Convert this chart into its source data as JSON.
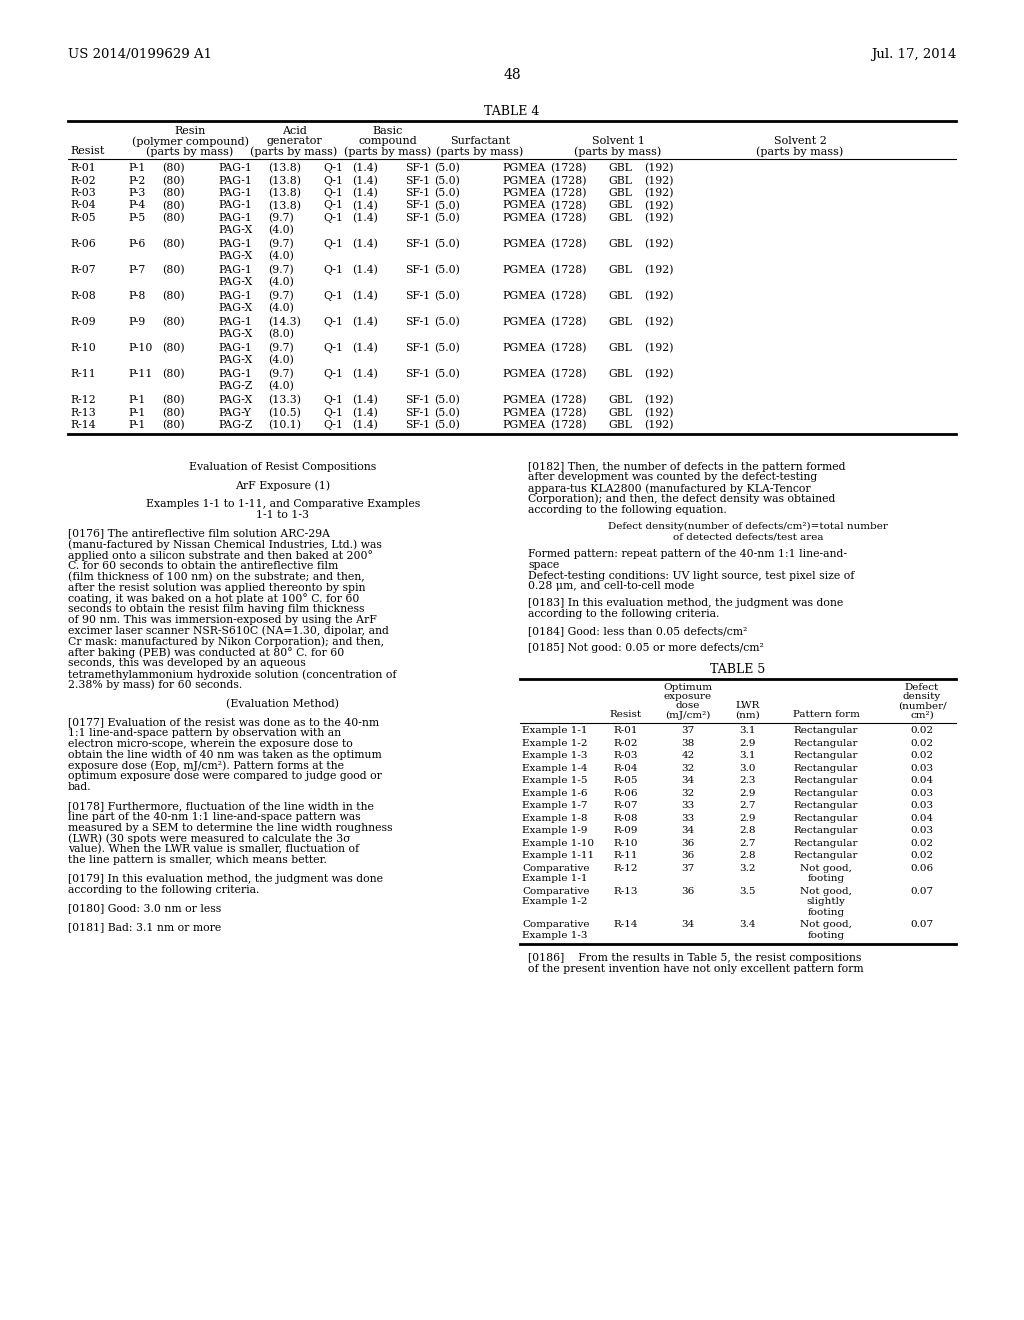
{
  "page_header_left": "US 2014/0199629 A1",
  "page_header_right": "Jul. 17, 2014",
  "page_number": "48",
  "table4_title": "TABLE 4",
  "table5_title": "TABLE 5",
  "table4_data": [
    [
      "R-01",
      "P-1",
      "(80)",
      "PAG-1",
      [
        "13.8"
      ],
      "Q-1",
      "(1.4)",
      "SF-1",
      "(5.0)",
      "PGMEA",
      "(1728)",
      "GBL",
      "(192)"
    ],
    [
      "R-02",
      "P-2",
      "(80)",
      "PAG-1",
      [
        "13.8"
      ],
      "Q-1",
      "(1.4)",
      "SF-1",
      "(5.0)",
      "PGMEA",
      "(1728)",
      "GBL",
      "(192)"
    ],
    [
      "R-03",
      "P-3",
      "(80)",
      "PAG-1",
      [
        "13.8"
      ],
      "Q-1",
      "(1.4)",
      "SF-1",
      "(5.0)",
      "PGMEA",
      "(1728)",
      "GBL",
      "(192)"
    ],
    [
      "R-04",
      "P-4",
      "(80)",
      "PAG-1",
      [
        "13.8"
      ],
      "Q-1",
      "(1.4)",
      "SF-1",
      "(5.0)",
      "PGMEA",
      "(1728)",
      "GBL",
      "(192)"
    ],
    [
      "R-05",
      "P-5",
      "(80)",
      "PAG-1\nPAG-X",
      [
        "9.7",
        "4.0"
      ],
      "Q-1",
      "(1.4)",
      "SF-1",
      "(5.0)",
      "PGMEA",
      "(1728)",
      "GBL",
      "(192)"
    ],
    [
      "R-06",
      "P-6",
      "(80)",
      "PAG-1\nPAG-X",
      [
        "9.7",
        "4.0"
      ],
      "Q-1",
      "(1.4)",
      "SF-1",
      "(5.0)",
      "PGMEA",
      "(1728)",
      "GBL",
      "(192)"
    ],
    [
      "R-07",
      "P-7",
      "(80)",
      "PAG-1\nPAG-X",
      [
        "9.7",
        "4.0"
      ],
      "Q-1",
      "(1.4)",
      "SF-1",
      "(5.0)",
      "PGMEA",
      "(1728)",
      "GBL",
      "(192)"
    ],
    [
      "R-08",
      "P-8",
      "(80)",
      "PAG-1\nPAG-X",
      [
        "9.7",
        "4.0"
      ],
      "Q-1",
      "(1.4)",
      "SF-1",
      "(5.0)",
      "PGMEA",
      "(1728)",
      "GBL",
      "(192)"
    ],
    [
      "R-09",
      "P-9",
      "(80)",
      "PAG-1\nPAG-X",
      [
        "14.3",
        "8.0"
      ],
      "Q-1",
      "(1.4)",
      "SF-1",
      "(5.0)",
      "PGMEA",
      "(1728)",
      "GBL",
      "(192)"
    ],
    [
      "R-10",
      "P-10",
      "(80)",
      "PAG-1\nPAG-X",
      [
        "9.7",
        "4.0"
      ],
      "Q-1",
      "(1.4)",
      "SF-1",
      "(5.0)",
      "PGMEA",
      "(1728)",
      "GBL",
      "(192)"
    ],
    [
      "R-11",
      "P-11",
      "(80)",
      "PAG-1\nPAG-Z",
      [
        "9.7",
        "4.0"
      ],
      "Q-1",
      "(1.4)",
      "SF-1",
      "(5.0)",
      "PGMEA",
      "(1728)",
      "GBL",
      "(192)"
    ],
    [
      "R-12",
      "P-1",
      "(80)",
      "PAG-X",
      [
        "13.3"
      ],
      "Q-1",
      "(1.4)",
      "SF-1",
      "(5.0)",
      "PGMEA",
      "(1728)",
      "GBL",
      "(192)"
    ],
    [
      "R-13",
      "P-1",
      "(80)",
      "PAG-Y",
      [
        "10.5"
      ],
      "Q-1",
      "(1.4)",
      "SF-1",
      "(5.0)",
      "PGMEA",
      "(1728)",
      "GBL",
      "(192)"
    ],
    [
      "R-14",
      "P-1",
      "(80)",
      "PAG-Z",
      [
        "10.1"
      ],
      "Q-1",
      "(1.4)",
      "SF-1",
      "(5.0)",
      "PGMEA",
      "(1728)",
      "GBL",
      "(192)"
    ]
  ],
  "table5_data": [
    [
      "Example 1-1",
      "R-01",
      "37",
      "3.1",
      [
        "Rectangular"
      ],
      "0.02"
    ],
    [
      "Example 1-2",
      "R-02",
      "38",
      "2.9",
      [
        "Rectangular"
      ],
      "0.02"
    ],
    [
      "Example 1-3",
      "R-03",
      "42",
      "3.1",
      [
        "Rectangular"
      ],
      "0.02"
    ],
    [
      "Example 1-4",
      "R-04",
      "32",
      "3.0",
      [
        "Rectangular"
      ],
      "0.03"
    ],
    [
      "Example 1-5",
      "R-05",
      "34",
      "2.3",
      [
        "Rectangular"
      ],
      "0.04"
    ],
    [
      "Example 1-6",
      "R-06",
      "32",
      "2.9",
      [
        "Rectangular"
      ],
      "0.03"
    ],
    [
      "Example 1-7",
      "R-07",
      "33",
      "2.7",
      [
        "Rectangular"
      ],
      "0.03"
    ],
    [
      "Example 1-8",
      "R-08",
      "33",
      "2.9",
      [
        "Rectangular"
      ],
      "0.04"
    ],
    [
      "Example 1-9",
      "R-09",
      "34",
      "2.8",
      [
        "Rectangular"
      ],
      "0.03"
    ],
    [
      "Example 1-10",
      "R-10",
      "36",
      "2.7",
      [
        "Rectangular"
      ],
      "0.02"
    ],
    [
      "Example 1-11",
      "R-11",
      "36",
      "2.8",
      [
        "Rectangular"
      ],
      "0.02"
    ],
    [
      "Comparative\nExample 1-1",
      "R-12",
      "37",
      "3.2",
      [
        "Not good,",
        "footing"
      ],
      "0.06"
    ],
    [
      "Comparative\nExample 1-2",
      "R-13",
      "36",
      "3.5",
      [
        "Not good,",
        "slightly",
        "footing"
      ],
      "0.07"
    ],
    [
      "Comparative\nExample 1-3",
      "R-14",
      "34",
      "3.4",
      [
        "Not good,",
        "footing"
      ],
      "0.07"
    ]
  ]
}
